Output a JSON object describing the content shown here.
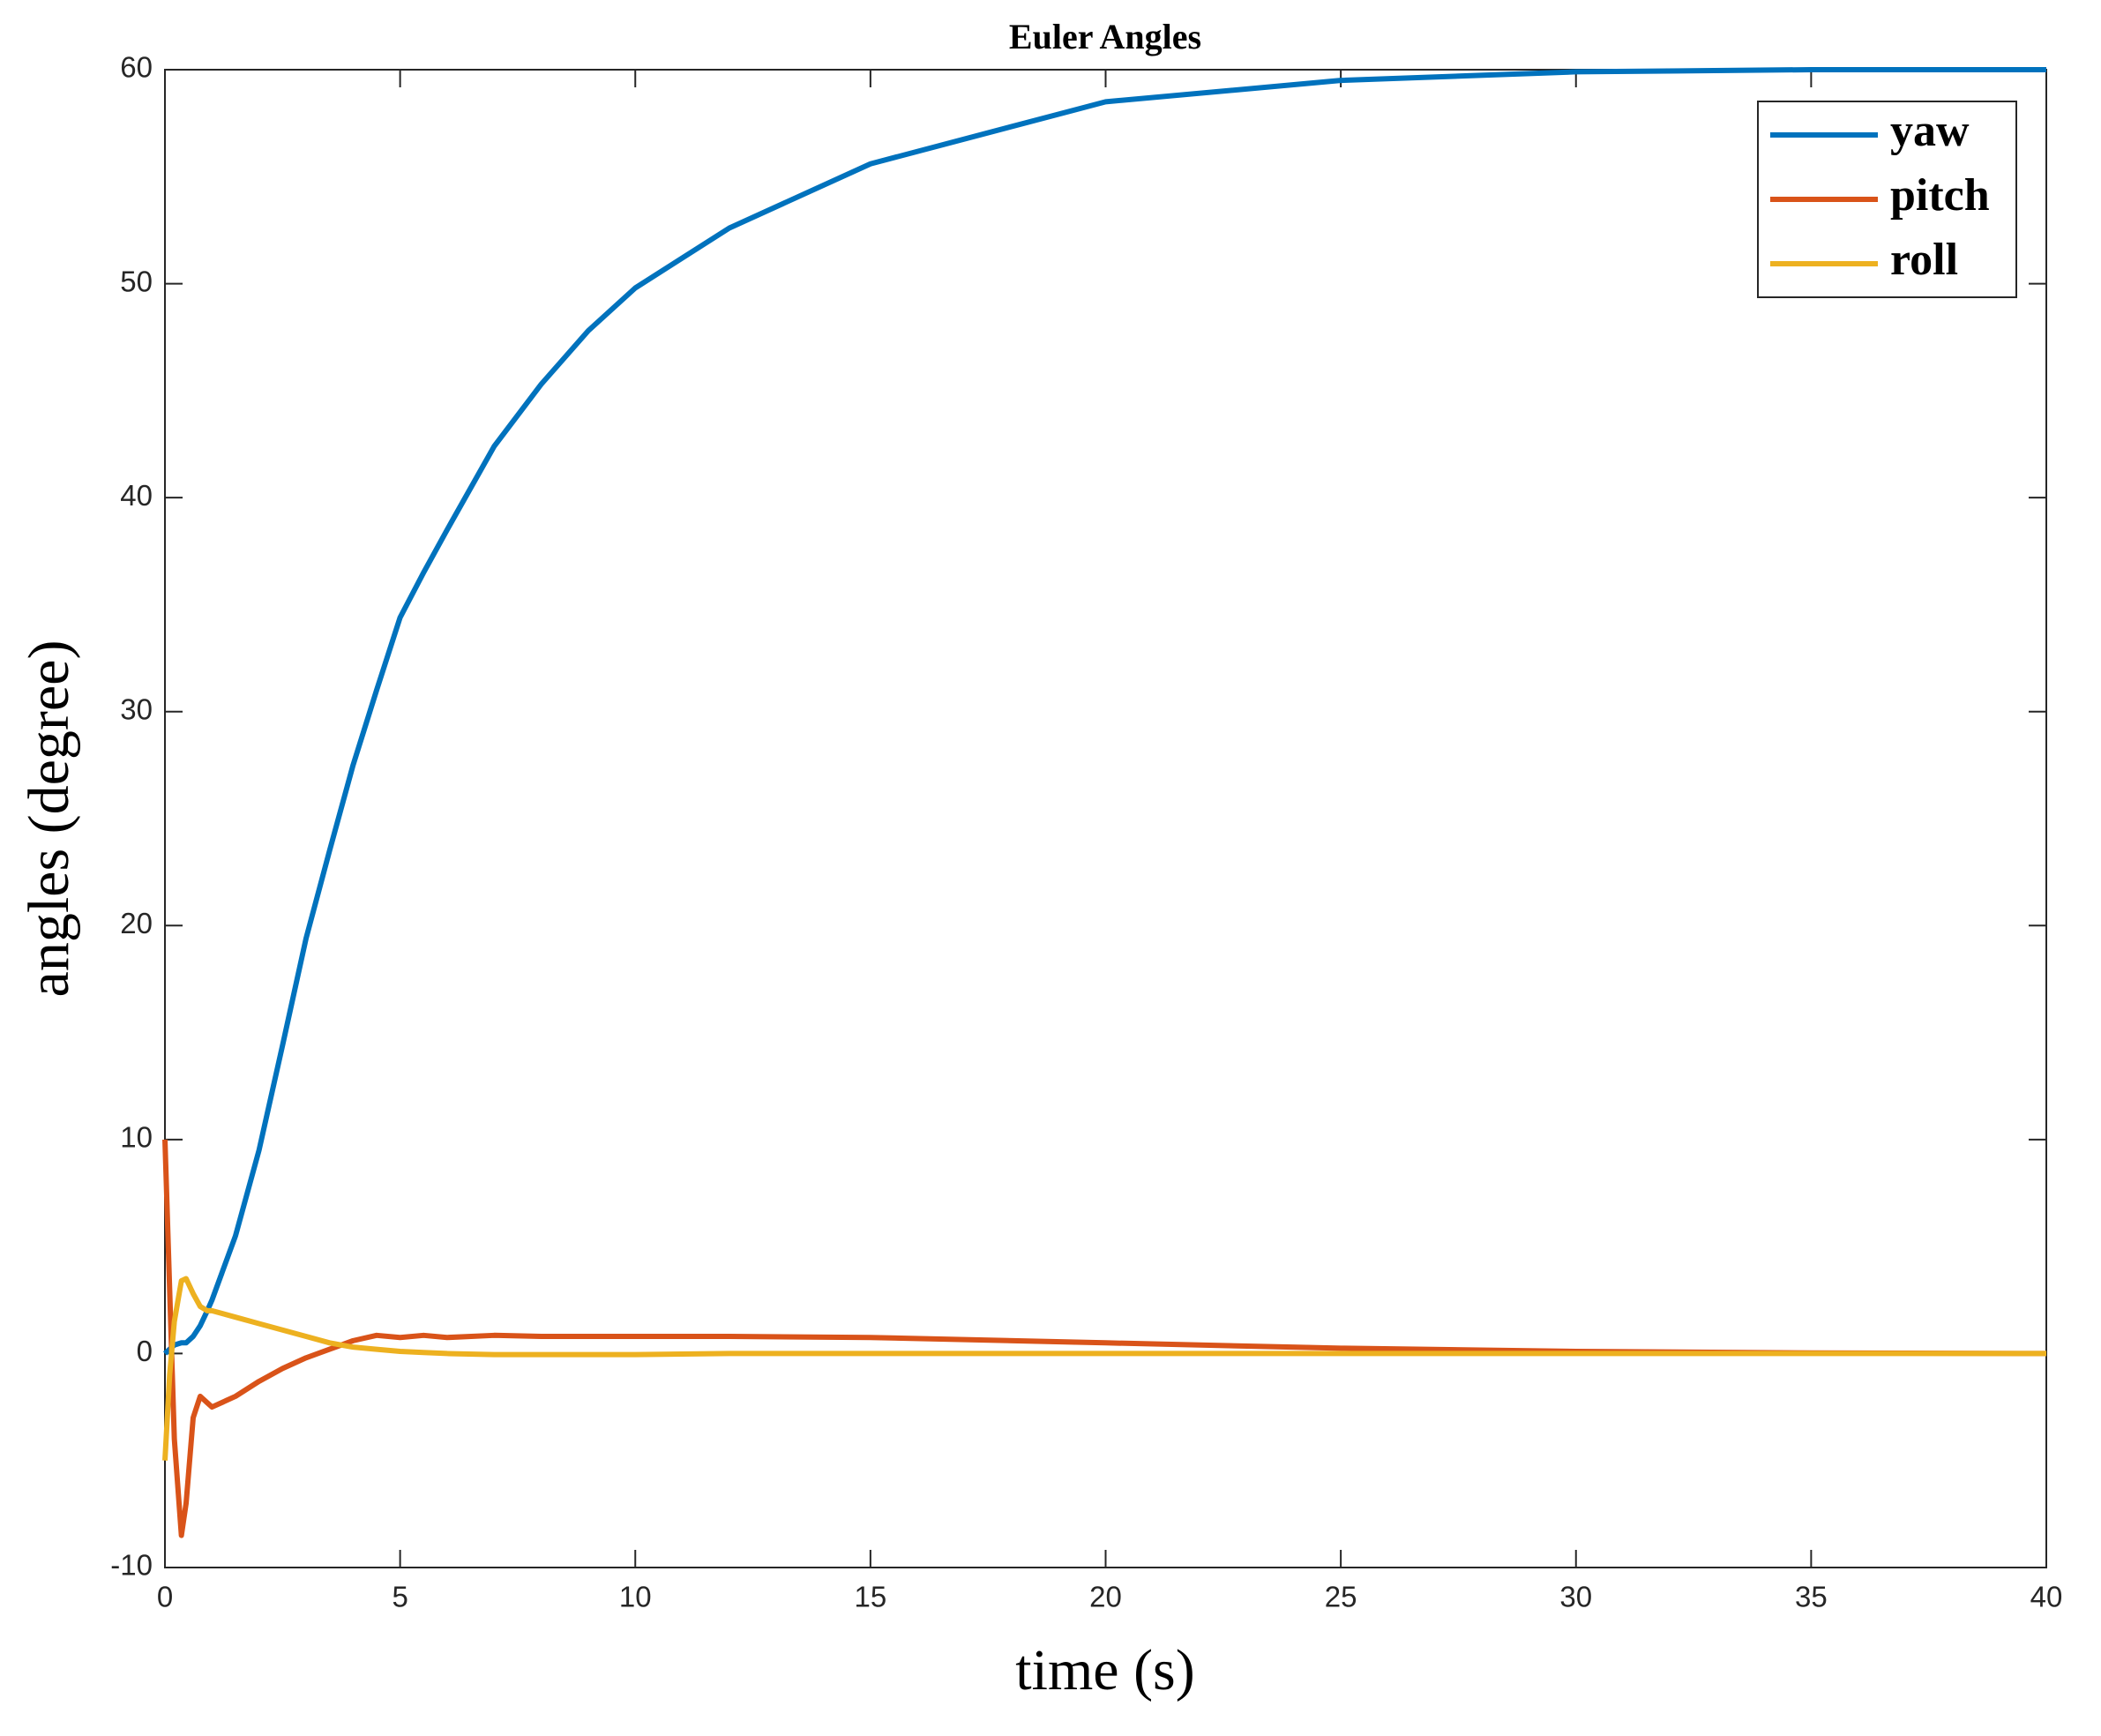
{
  "chart_data": {
    "type": "line",
    "title": "Euler Angles",
    "xlabel": "time (s)",
    "ylabel": "angles (degree)",
    "x": [
      0,
      0.1,
      0.2,
      0.35,
      0.45,
      0.6,
      0.75,
      0.9,
      1,
      1.5,
      2,
      2.5,
      3,
      3.5,
      4,
      4.5,
      5,
      5.5,
      6,
      7,
      8,
      9,
      10,
      12,
      15,
      20,
      25,
      30,
      35,
      40
    ],
    "series": [
      {
        "name": "yaw",
        "color": "#0072bd",
        "values": [
          0,
          0.2,
          0.4,
          0.5,
          0.5,
          0.8,
          1.3,
          2,
          2.5,
          5.5,
          9.5,
          14.4,
          19.4,
          23.5,
          27.5,
          31,
          34.4,
          36.5,
          38.5,
          42.4,
          45.3,
          47.8,
          49.8,
          52.6,
          55.6,
          58.5,
          59.5,
          59.9,
          60,
          60
        ]
      },
      {
        "name": "pitch",
        "color": "#d95319",
        "values": [
          10,
          3,
          -4,
          -8.5,
          -7,
          -3,
          -2,
          -2.3,
          -2.5,
          -2,
          -1.3,
          -0.7,
          -0.2,
          0.2,
          0.6,
          0.85,
          0.75,
          0.85,
          0.75,
          0.85,
          0.8,
          0.8,
          0.8,
          0.8,
          0.75,
          0.5,
          0.25,
          0.1,
          0.03,
          0
        ]
      },
      {
        "name": "roll",
        "color": "#edb120",
        "values": [
          -5,
          -1,
          1.5,
          3.4,
          3.5,
          2.8,
          2.2,
          2,
          2,
          1.7,
          1.4,
          1.1,
          0.8,
          0.5,
          0.3,
          0.2,
          0.1,
          0.05,
          0,
          -0.05,
          -0.05,
          -0.05,
          -0.05,
          0,
          0,
          0,
          0,
          0,
          0,
          0
        ]
      }
    ],
    "xlim": [
      0,
      40
    ],
    "xticks": [
      0,
      5,
      10,
      15,
      20,
      25,
      30,
      35,
      40
    ],
    "ylim": [
      -10,
      60
    ],
    "yticks": [
      -10,
      0,
      10,
      20,
      30,
      40,
      50,
      60
    ],
    "grid": false,
    "legend": "upper right"
  }
}
